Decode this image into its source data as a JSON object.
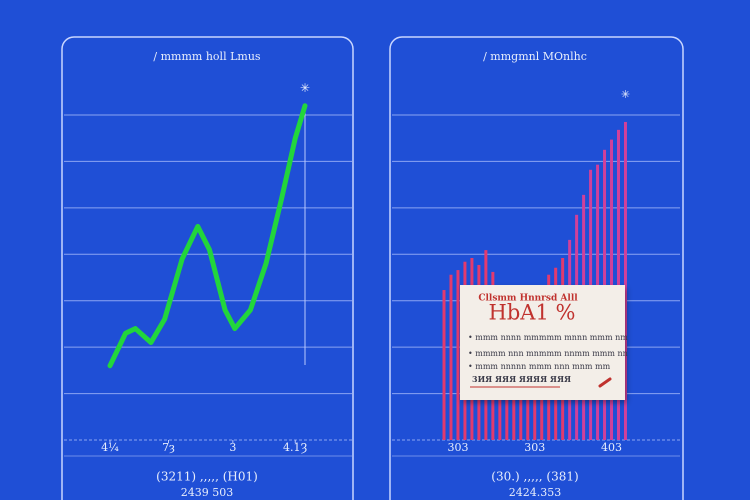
{
  "chart_data": [
    {
      "type": "line",
      "title": "/ mmmm holl Lmus",
      "annotation": "✳",
      "x": [
        0,
        0.8,
        1.3,
        2.1,
        2.8,
        3.7,
        4.5,
        5.1,
        5.9,
        6.4,
        7.2,
        8.0,
        8.8,
        9.5,
        10
      ],
      "values": [
        1.6,
        2.3,
        2.4,
        2.1,
        2.6,
        3.9,
        4.6,
        4.1,
        2.8,
        2.4,
        2.8,
        3.8,
        5.2,
        6.5,
        7.2
      ],
      "color": "#22d63c",
      "xlim": [
        0,
        10
      ],
      "xticks": [
        {
          "value": 0,
          "label": "4¼"
        },
        {
          "value": 3,
          "label": "7ȝ"
        },
        {
          "value": 6.3,
          "label": "3"
        },
        {
          "value": 9.5,
          "label": "4.1Ȝ"
        }
      ],
      "ylim": [
        0,
        7
      ],
      "yticks": [
        0,
        1,
        2,
        3,
        4,
        5,
        6,
        7
      ],
      "grid": true,
      "footer": [
        "(3211) ,,,,, (H01)",
        "2439 503"
      ]
    },
    {
      "type": "bar",
      "title": "/ mmgmnl MOnlhc",
      "annotation": "✳",
      "categories": [
        null,
        null,
        "303",
        null,
        null,
        null,
        null,
        null,
        null,
        null,
        null,
        null,
        null,
        "303",
        null,
        null,
        null,
        null,
        null,
        null,
        null,
        null,
        null,
        null,
        "403",
        null,
        null
      ],
      "values": [
        3.23,
        3.56,
        3.66,
        3.84,
        3.92,
        3.77,
        4.09,
        3.62,
        3.23,
        3.19,
        3.13,
        3.06,
        3.1,
        3.19,
        3.23,
        3.56,
        3.71,
        3.92,
        4.31,
        4.85,
        5.28,
        5.82,
        5.93,
        6.25,
        6.47,
        6.68,
        6.85
      ],
      "color": "#e23a6e",
      "ylim": [
        0,
        7
      ],
      "yticks": [
        0,
        1,
        2,
        3,
        4,
        5,
        6,
        7
      ],
      "grid": true,
      "footer": [
        "(30.) ,,,,, (381)",
        "2424.353"
      ]
    }
  ],
  "card": {
    "heading": "Cllsmm Hnnrsd Alll",
    "value": "HbA1 %",
    "lines": [
      "• mmm nnnn mmmmm mnnn mmm nm",
      "• mmmm nnn mnmmm nnmm mmm nn",
      "• mmm nnnnn mmm nnn mnm mm"
    ],
    "footnote": "3ИЯ ЯЯЯ ЯЯЯЯ ЯЯЯ"
  }
}
